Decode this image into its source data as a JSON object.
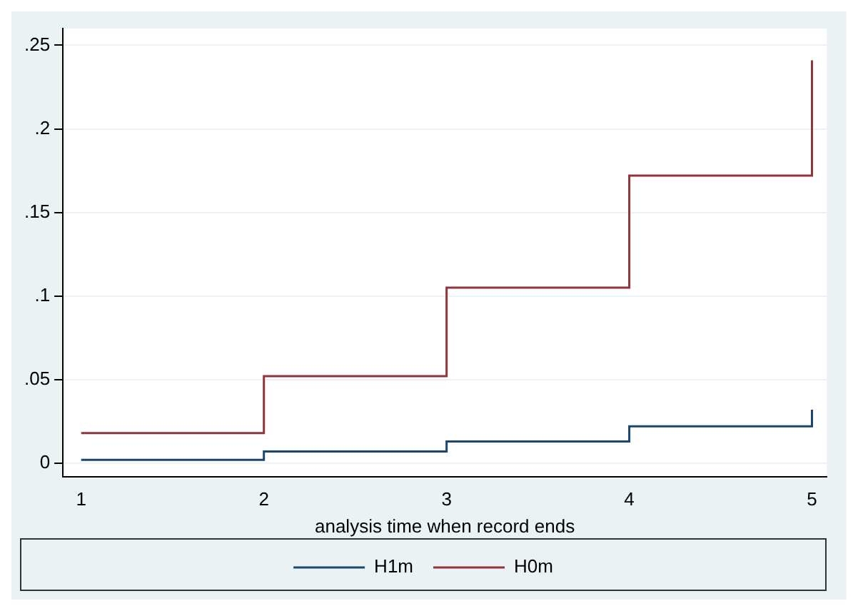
{
  "chart_data": {
    "type": "step",
    "xlabel": "analysis time when record ends",
    "x": [
      1,
      2,
      3,
      4,
      5
    ],
    "series": [
      {
        "name": "H1m",
        "color": "#1a476f",
        "values": [
          0.002,
          0.007,
          0.013,
          0.022,
          0.032
        ]
      },
      {
        "name": "H0m",
        "color": "#90353b",
        "values": [
          0.018,
          0.052,
          0.105,
          0.172,
          0.241
        ]
      }
    ],
    "xlim": [
      0.9,
      5.08
    ],
    "xticks": [
      1,
      2,
      3,
      4,
      5
    ],
    "ylim": [
      -0.008,
      0.26
    ],
    "yticks": [
      {
        "value": 0,
        "label": "0"
      },
      {
        "value": 0.05,
        "label": ".05"
      },
      {
        "value": 0.1,
        "label": ".1"
      },
      {
        "value": 0.15,
        "label": ".15"
      },
      {
        "value": 0.2,
        "label": ".2"
      },
      {
        "value": 0.25,
        "label": ".25"
      }
    ],
    "grid": "y",
    "legend": "bottom"
  }
}
